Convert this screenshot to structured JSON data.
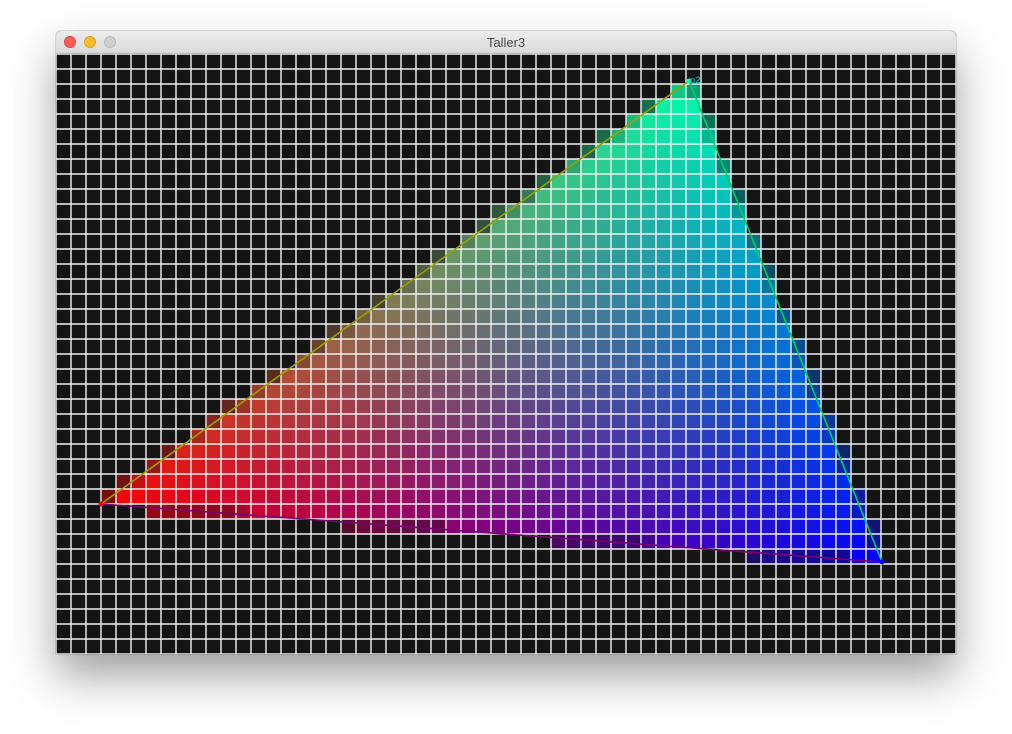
{
  "window": {
    "title": "Taller3",
    "buttons": {
      "close_color": "#fe5f57",
      "minimize_color": "#febc2e",
      "maximize_color": "#cfcfcf"
    }
  },
  "canvas": {
    "background_color": "#141414",
    "grid_line_color": "#f2f2f2",
    "grid_cells": {
      "columns": 60,
      "rows": 40
    },
    "triangle": {
      "fill": "rasterized",
      "vertices": [
        {
          "label": "",
          "color": "#ff0000"
        },
        {
          "label": "p2",
          "color": "#00ffaa"
        },
        {
          "label": "",
          "color": "#0000ff"
        }
      ]
    }
  }
}
